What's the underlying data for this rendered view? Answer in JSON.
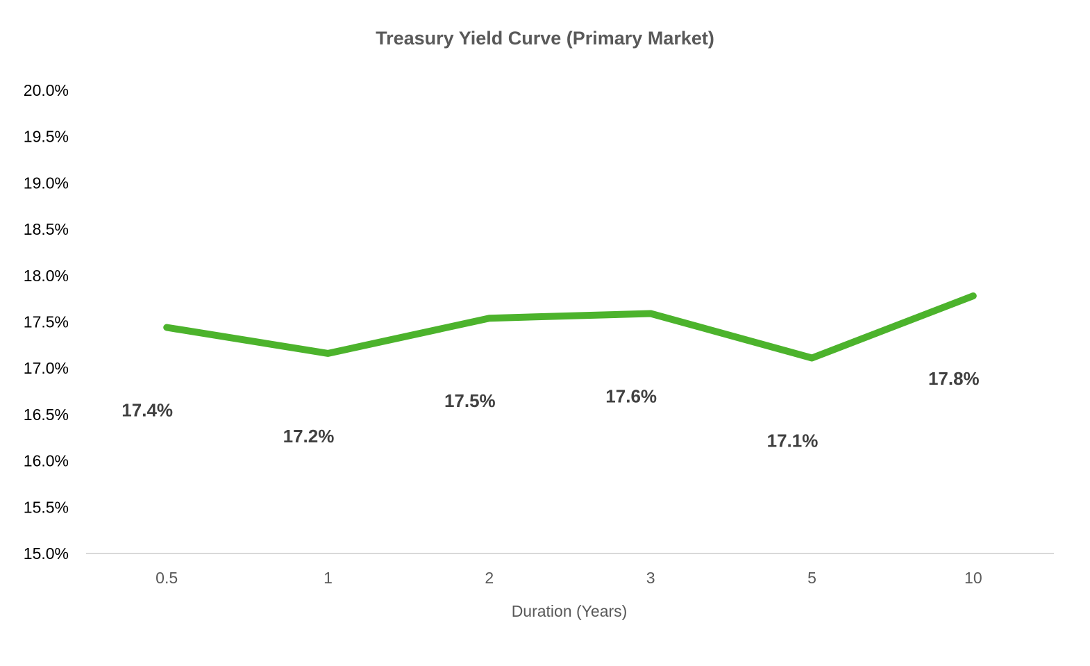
{
  "chart_data": {
    "type": "line",
    "title": "Treasury Yield Curve (Primary Market)",
    "xlabel": "Duration (Years)",
    "ylabel": "",
    "categories": [
      "0.5",
      "1",
      "2",
      "3",
      "5",
      "10"
    ],
    "y_ticks": [
      "15.0%",
      "15.5%",
      "16.0%",
      "16.5%",
      "17.0%",
      "17.5%",
      "18.0%",
      "18.5%",
      "19.0%",
      "19.5%",
      "20.0%"
    ],
    "ylim": [
      15.0,
      20.0
    ],
    "grid": false,
    "series": [
      {
        "values": [
          17.44,
          17.16,
          17.54,
          17.59,
          17.11,
          17.78
        ],
        "data_labels": [
          "17.4%",
          "17.2%",
          "17.5%",
          "17.6%",
          "17.1%",
          "17.8%"
        ],
        "color": "#4cb32c"
      }
    ],
    "axis_color": "#d9d9d9"
  }
}
